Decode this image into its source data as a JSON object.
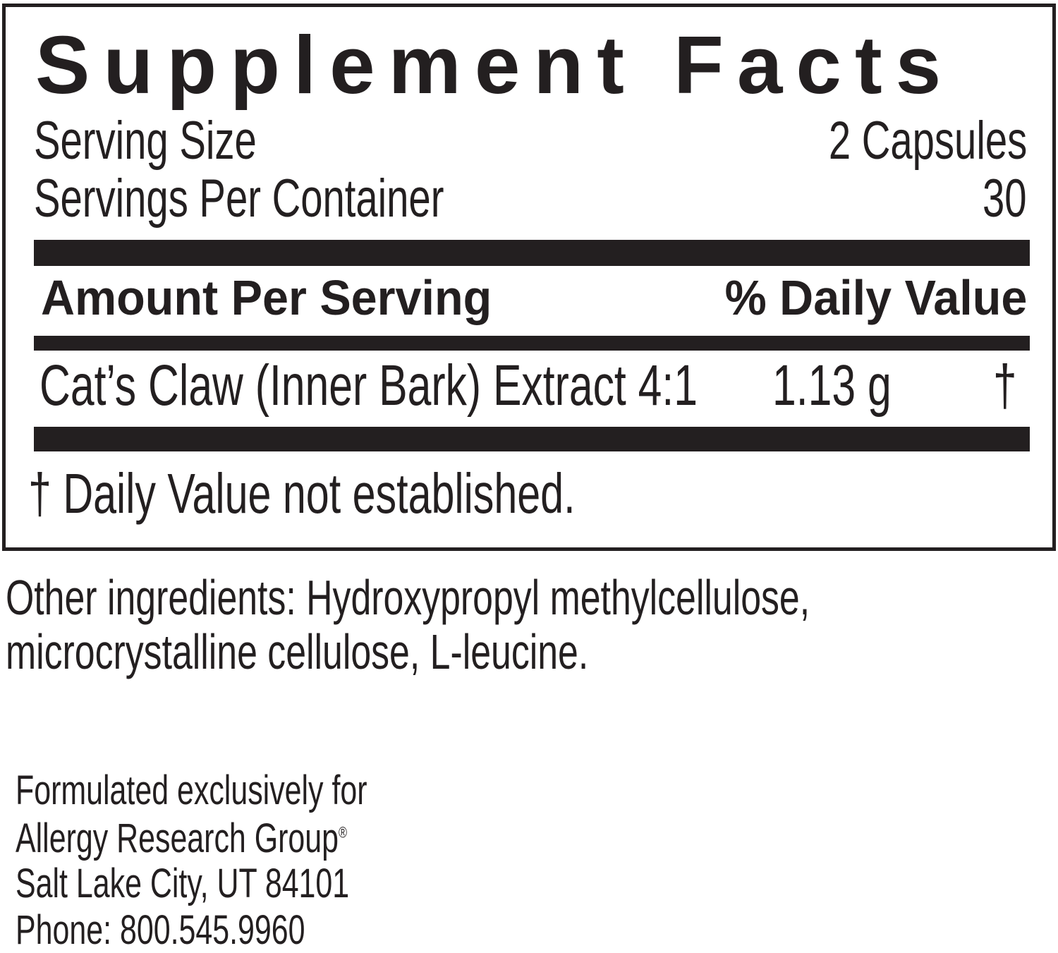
{
  "title": "Supplement Facts",
  "serving_size": {
    "label": "Serving Size",
    "value": "2 Capsules"
  },
  "servings_per_container": {
    "label": "Servings Per Container",
    "value": "30"
  },
  "header": {
    "amount": "Amount Per Serving",
    "daily_value": "% Daily Value"
  },
  "ingredients": [
    {
      "name": "Cat’s Claw (Inner Bark) Extract 4:1",
      "amount": "1.13 g",
      "dv": "†"
    }
  ],
  "footnote": "† Daily Value not established.",
  "other_ingredients": [
    "Other ingredients: Hydroxypropyl methylcellulose,",
    "microcrystalline cellulose, L-leucine."
  ],
  "manufacturer": {
    "line1": "Formulated exclusively for",
    "line2": "Allergy Research Group",
    "registered": "®",
    "line3": "Salt Lake City, UT 84101",
    "line4": "Phone: 800.545.9960"
  }
}
